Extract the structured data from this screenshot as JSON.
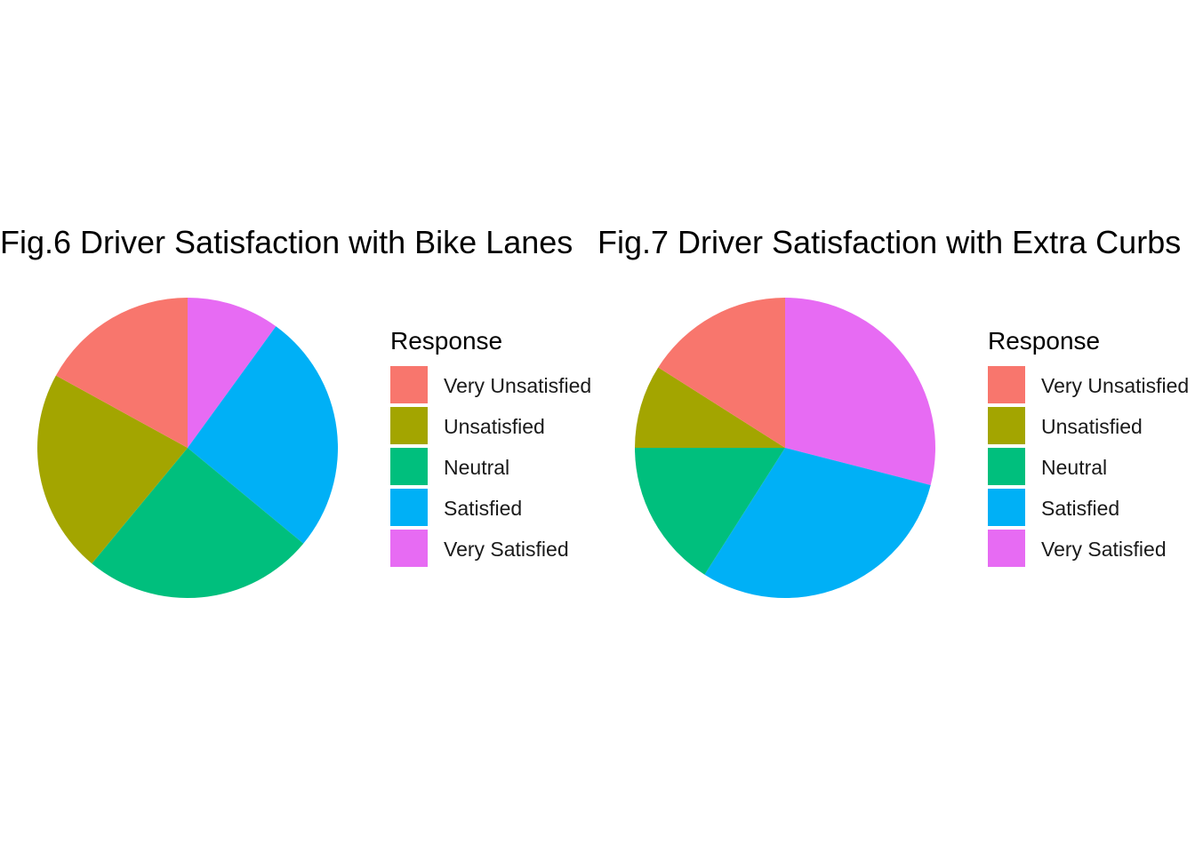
{
  "chart_data": [
    {
      "type": "pie",
      "title": "Fig.6 Driver Satisfaction with Bike Lanes",
      "legend_title": "Response",
      "legend_position": "right",
      "categories": [
        "Very Unsatisfied",
        "Unsatisfied",
        "Neutral",
        "Satisfied",
        "Very Satisfied"
      ],
      "values": [
        17,
        22,
        25,
        26,
        10
      ],
      "colors": [
        "#F8766D",
        "#A3A500",
        "#00BF7D",
        "#00B0F6",
        "#E76BF3"
      ]
    },
    {
      "type": "pie",
      "title": "Fig.7 Driver Satisfaction with Extra Curbs",
      "legend_title": "Response",
      "legend_position": "right",
      "categories": [
        "Very Unsatisfied",
        "Unsatisfied",
        "Neutral",
        "Satisfied",
        "Very Satisfied"
      ],
      "values": [
        16,
        9,
        16,
        30,
        29
      ],
      "colors": [
        "#F8766D",
        "#A3A500",
        "#00BF7D",
        "#00B0F6",
        "#E76BF3"
      ]
    }
  ]
}
